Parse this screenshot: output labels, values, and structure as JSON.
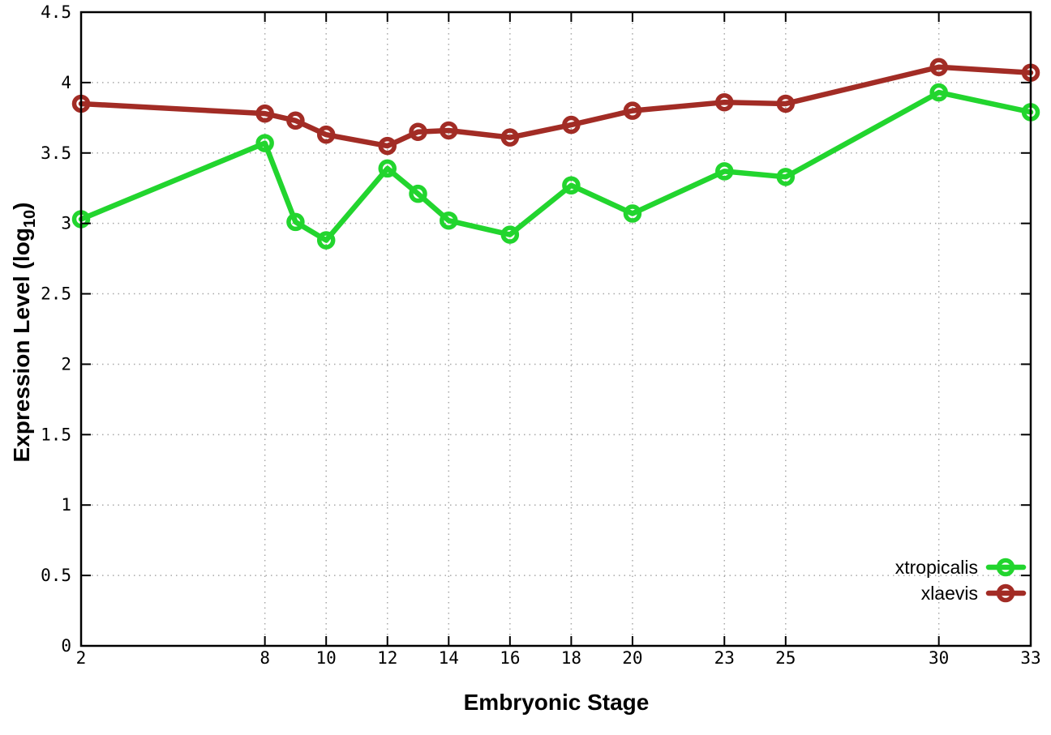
{
  "page": {
    "background_color": "#ffffff",
    "text_color": "#000000"
  },
  "chart_data": {
    "type": "line",
    "title": "",
    "xlabel": "Embryonic Stage",
    "ylabel": "Expression Level (log10)",
    "ylabel_parts": {
      "main": "Expression Level (log",
      "sub": "10",
      "end": ")"
    },
    "x": [
      2,
      8,
      9,
      10,
      12,
      13,
      14,
      16,
      18,
      20,
      23,
      25,
      30,
      33
    ],
    "series": [
      {
        "name": "xtropicalis",
        "color": "#22d52e",
        "marker": "open-circle",
        "values": [
          3.03,
          3.57,
          3.01,
          2.88,
          3.39,
          3.21,
          3.02,
          2.92,
          3.27,
          3.07,
          3.37,
          3.33,
          3.93,
          3.79
        ]
      },
      {
        "name": "xlaevis",
        "color": "#a22c25",
        "marker": "open-circle",
        "values": [
          3.85,
          3.78,
          3.73,
          3.63,
          3.55,
          3.65,
          3.66,
          3.61,
          3.7,
          3.8,
          3.86,
          3.85,
          4.11,
          4.07
        ]
      }
    ],
    "xticks": [
      2,
      8,
      10,
      12,
      14,
      16,
      18,
      20,
      23,
      25,
      30,
      33
    ],
    "yticks": [
      0,
      0.5,
      1,
      1.5,
      2,
      2.5,
      3,
      3.5,
      4,
      4.5
    ],
    "xlim": [
      2,
      33
    ],
    "ylim": [
      0,
      4.5
    ],
    "grid": true,
    "grid_style": "dotted",
    "grid_color": "#a8a8a8",
    "axis_color": "#000000",
    "legend_position": "bottom-right",
    "legend_entries": [
      "xtropicalis",
      "xlaevis"
    ]
  }
}
